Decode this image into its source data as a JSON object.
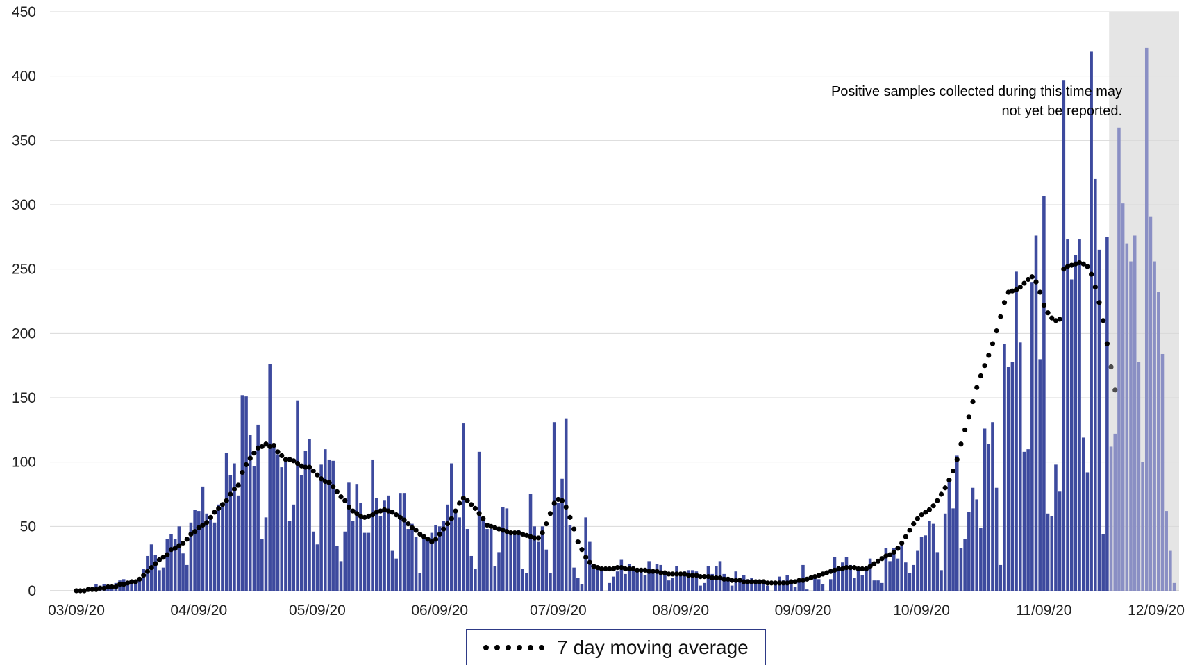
{
  "chart_data": {
    "type": "bar",
    "x_axis": {
      "tick_labels": [
        "03/09/20",
        "04/09/20",
        "05/09/20",
        "06/09/20",
        "07/09/20",
        "08/09/20",
        "09/09/20",
        "10/09/20",
        "11/09/20",
        "12/09/20"
      ],
      "tick_day_offsets": [
        0,
        31,
        61,
        92,
        122,
        153,
        184,
        214,
        245,
        275
      ]
    },
    "y_axis": {
      "ylim": [
        0,
        450
      ],
      "ticks": [
        0,
        50,
        100,
        150,
        200,
        250,
        300,
        350,
        400,
        450
      ]
    },
    "grid": "horizontal",
    "annotation": "Positive samples collected during this time may not yet be reported.",
    "shaded_region_start": "11/26/20",
    "series": [
      {
        "kind": "bar",
        "color": "#3d4a9e",
        "start_date": "03/09/20",
        "values": [
          0,
          1,
          0,
          2,
          3,
          5,
          4,
          5,
          3,
          4,
          6,
          8,
          9,
          7,
          8,
          5,
          10,
          17,
          27,
          36,
          28,
          16,
          18,
          40,
          44,
          40,
          50,
          29,
          20,
          53,
          63,
          62,
          81,
          60,
          57,
          53,
          67,
          67,
          107,
          90,
          99,
          74,
          152,
          151,
          121,
          97,
          129,
          40,
          57,
          176,
          112,
          106,
          96,
          102,
          54,
          67,
          148,
          90,
          109,
          118,
          46,
          36,
          98,
          110,
          102,
          101,
          35,
          23,
          46,
          84,
          54,
          83,
          68,
          45,
          45,
          102,
          72,
          58,
          70,
          74,
          31,
          25,
          76,
          76,
          48,
          52,
          42,
          14,
          41,
          40,
          45,
          51,
          50,
          54,
          67,
          99,
          62,
          57,
          130,
          48,
          27,
          17,
          108,
          55,
          48,
          48,
          19,
          30,
          65,
          64,
          46,
          45,
          47,
          17,
          14,
          75,
          50,
          38,
          50,
          32,
          14,
          131,
          68,
          87,
          134,
          51,
          18,
          10,
          5,
          57,
          38,
          21,
          18,
          17,
          0,
          6,
          11,
          15,
          24,
          13,
          21,
          19,
          17,
          15,
          12,
          23,
          16,
          21,
          20,
          15,
          8,
          10,
          19,
          12,
          15,
          16,
          16,
          15,
          4,
          6,
          19,
          13,
          19,
          23,
          13,
          8,
          4,
          15,
          10,
          12,
          9,
          10,
          8,
          6,
          5,
          4,
          0,
          6,
          11,
          8,
          12,
          7,
          3,
          7,
          20,
          1,
          0,
          10,
          9,
          5,
          0,
          9,
          26,
          19,
          22,
          26,
          20,
          10,
          18,
          12,
          19,
          25,
          8,
          8,
          6,
          33,
          23,
          33,
          25,
          37,
          22,
          14,
          20,
          31,
          42,
          43,
          54,
          52,
          30,
          16,
          60,
          86,
          64,
          105,
          33,
          40,
          61,
          80,
          71,
          49,
          126,
          114,
          131,
          80,
          20,
          192,
          174,
          178,
          248,
          193,
          108,
          110,
          240,
          276,
          180,
          307,
          60,
          58,
          98,
          77,
          397,
          273,
          242,
          261,
          273,
          119,
          92,
          419,
          320,
          265,
          44,
          275,
          112,
          122,
          360,
          301,
          270,
          256,
          276,
          178,
          100,
          422,
          291,
          256,
          232,
          184,
          62,
          31,
          6
        ]
      },
      {
        "kind": "dotted-line",
        "name": "7 day moving average",
        "start_date": "03/09/20",
        "color": "#000000",
        "values": [
          0,
          0,
          0,
          1,
          1,
          1,
          2,
          2,
          3,
          3,
          3,
          5,
          5,
          6,
          7,
          7,
          9,
          12,
          15,
          18,
          21,
          24,
          26,
          28,
          32,
          33,
          35,
          37,
          40,
          44,
          46,
          49,
          51,
          53,
          57,
          61,
          64,
          67,
          70,
          75,
          79,
          82,
          92,
          98,
          103,
          107,
          111,
          112,
          114,
          112,
          113,
          108,
          105,
          102,
          102,
          101,
          99,
          97,
          96,
          96,
          93,
          90,
          87,
          85,
          84,
          81,
          77,
          73,
          70,
          65,
          62,
          60,
          58,
          57,
          58,
          59,
          61,
          62,
          63,
          62,
          61,
          59,
          57,
          55,
          52,
          49,
          47,
          44,
          42,
          40,
          38,
          40,
          44,
          48,
          52,
          56,
          62,
          68,
          72,
          70,
          67,
          64,
          60,
          56,
          51,
          50,
          49,
          48,
          47,
          46,
          45,
          45,
          45,
          44,
          43,
          42,
          41,
          41,
          45,
          52,
          60,
          68,
          71,
          70,
          65,
          57,
          48,
          38,
          32,
          26,
          22,
          19,
          18,
          17,
          17,
          17,
          17,
          18,
          18,
          17,
          17,
          17,
          16,
          16,
          16,
          15,
          15,
          15,
          14,
          14,
          13,
          13,
          13,
          13,
          13,
          12,
          12,
          12,
          11,
          11,
          11,
          10,
          10,
          10,
          9,
          9,
          8,
          8,
          8,
          7,
          7,
          7,
          7,
          7,
          7,
          6,
          6,
          6,
          6,
          6,
          6,
          7,
          7,
          8,
          8,
          9,
          10,
          11,
          12,
          13,
          14,
          15,
          16,
          17,
          17,
          18,
          18,
          18,
          17,
          17,
          17,
          19,
          21,
          23,
          25,
          27,
          28,
          30,
          33,
          37,
          42,
          47,
          52,
          56,
          59,
          61,
          63,
          66,
          70,
          75,
          80,
          86,
          93,
          102,
          114,
          125,
          135,
          147,
          158,
          167,
          175,
          183,
          192,
          202,
          213,
          224,
          232,
          233,
          234,
          236,
          239,
          242,
          244,
          240,
          232,
          222,
          216,
          212,
          210,
          211,
          250,
          252,
          253,
          254,
          255,
          254,
          252,
          246,
          236,
          224,
          210,
          192,
          174,
          156
        ]
      }
    ],
    "legend": {
      "label": "7 day moving average",
      "placement": "bottom-center"
    }
  }
}
